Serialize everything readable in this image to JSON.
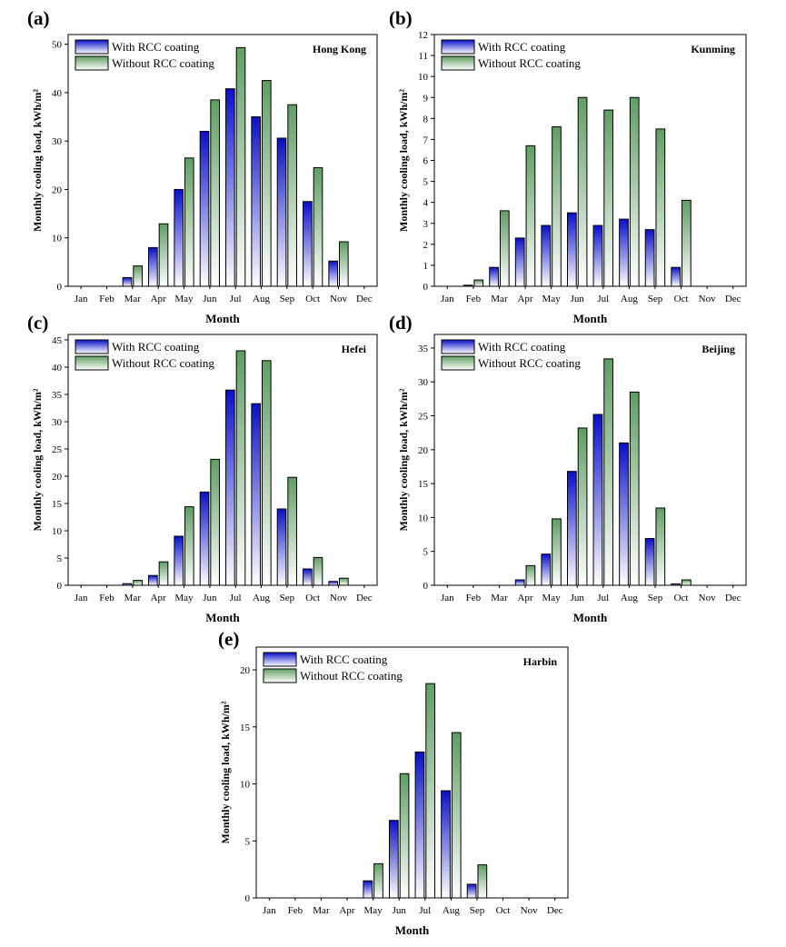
{
  "figure": {
    "months": [
      "Jan",
      "Feb",
      "Mar",
      "Apr",
      "May",
      "Jun",
      "Jul",
      "Aug",
      "Sep",
      "Oct",
      "Nov",
      "Dec"
    ]
  },
  "legend": {
    "with": "With RCC coating",
    "without": "Without RCC coating"
  },
  "colors": {
    "with_dark": "#0a10c8",
    "with_light": "#ffffff",
    "without_dark": "#5f9e63",
    "without_light": "#ffffff",
    "axis": "#000000"
  },
  "chart_data": [
    {
      "panel": "(a)",
      "city": "Hong Kong",
      "type": "bar",
      "xlabel": "Month",
      "ylabel": "Monthly cooling load, kWh/m²",
      "ylim": [
        0,
        52
      ],
      "yticks": [
        0,
        10,
        20,
        30,
        40,
        50
      ],
      "categories": [
        "Jan",
        "Feb",
        "Mar",
        "Apr",
        "May",
        "Jun",
        "Jul",
        "Aug",
        "Sep",
        "Oct",
        "Nov",
        "Dec"
      ],
      "series": [
        {
          "name": "With RCC coating",
          "values": [
            0,
            0,
            1.8,
            8,
            20,
            32,
            40.8,
            35,
            30.6,
            17.5,
            5.2,
            0
          ]
        },
        {
          "name": "Without RCC coating",
          "values": [
            0,
            0,
            4.2,
            12.9,
            26.5,
            38.5,
            49.3,
            42.5,
            37.5,
            24.5,
            9.2,
            0
          ]
        }
      ],
      "grid": false,
      "legend_position": "top-left"
    },
    {
      "panel": "(b)",
      "city": "Kunming",
      "type": "bar",
      "xlabel": "Month",
      "ylabel": "Monthly cooling load, kWh/m²",
      "ylim": [
        0,
        12
      ],
      "yticks": [
        0,
        1,
        2,
        3,
        4,
        5,
        6,
        7,
        8,
        9,
        10,
        11,
        12
      ],
      "categories": [
        "Jan",
        "Feb",
        "Mar",
        "Apr",
        "May",
        "Jun",
        "Jul",
        "Aug",
        "Sep",
        "Oct",
        "Nov",
        "Dec"
      ],
      "series": [
        {
          "name": "With RCC coating",
          "values": [
            0,
            0.05,
            0.9,
            2.3,
            2.9,
            3.5,
            2.9,
            3.2,
            2.7,
            0.9,
            0,
            0
          ]
        },
        {
          "name": "Without RCC coating",
          "values": [
            0,
            0.3,
            3.6,
            6.7,
            7.6,
            9.0,
            8.4,
            9.0,
            7.5,
            4.1,
            0,
            0
          ]
        }
      ],
      "grid": false,
      "legend_position": "top-left"
    },
    {
      "panel": "(c)",
      "city": "Hefei",
      "type": "bar",
      "xlabel": "Month",
      "ylabel": "Monthly cooling load, kWh/m²",
      "ylim": [
        0,
        46
      ],
      "yticks": [
        0,
        5,
        10,
        15,
        20,
        25,
        30,
        35,
        40,
        45
      ],
      "categories": [
        "Jan",
        "Feb",
        "Mar",
        "Apr",
        "May",
        "Jun",
        "Jul",
        "Aug",
        "Sep",
        "Oct",
        "Nov",
        "Dec"
      ],
      "series": [
        {
          "name": "With RCC coating",
          "values": [
            0,
            0,
            0.3,
            1.8,
            9.0,
            17.1,
            35.8,
            33.3,
            14.0,
            3.0,
            0.7,
            0
          ]
        },
        {
          "name": "Without RCC coating",
          "values": [
            0,
            0,
            0.9,
            4.3,
            14.4,
            23.1,
            43.0,
            41.2,
            19.8,
            5.1,
            1.3,
            0
          ]
        }
      ],
      "grid": false,
      "legend_position": "top-left"
    },
    {
      "panel": "(d)",
      "city": "Beijing",
      "type": "bar",
      "xlabel": "Month",
      "ylabel": "Monthly cooling load, kWh/m²",
      "ylim": [
        0,
        37
      ],
      "yticks": [
        0,
        5,
        10,
        15,
        20,
        25,
        30,
        35
      ],
      "categories": [
        "Jan",
        "Feb",
        "Mar",
        "Apr",
        "May",
        "Jun",
        "Jul",
        "Aug",
        "Sep",
        "Oct",
        "Nov",
        "Dec"
      ],
      "series": [
        {
          "name": "With RCC coating",
          "values": [
            0,
            0,
            0,
            0.8,
            4.6,
            16.8,
            25.2,
            21.0,
            6.9,
            0.2,
            0,
            0
          ]
        },
        {
          "name": "Without RCC coating",
          "values": [
            0,
            0,
            0,
            2.9,
            9.8,
            23.2,
            33.4,
            28.5,
            11.4,
            0.8,
            0,
            0
          ]
        }
      ],
      "grid": false,
      "legend_position": "top-left"
    },
    {
      "panel": "(e)",
      "city": "Harbin",
      "type": "bar",
      "xlabel": "Month",
      "ylabel": "Monthly cooling load, kWh/m²",
      "ylim": [
        0,
        22
      ],
      "yticks": [
        0,
        5,
        10,
        15,
        20
      ],
      "categories": [
        "Jan",
        "Feb",
        "Mar",
        "Apr",
        "May",
        "Jun",
        "Jul",
        "Aug",
        "Sep",
        "Oct",
        "Nov",
        "Dec"
      ],
      "series": [
        {
          "name": "With RCC coating",
          "values": [
            0,
            0,
            0,
            0,
            1.5,
            6.8,
            12.8,
            9.4,
            1.2,
            0,
            0,
            0
          ]
        },
        {
          "name": "Without RCC coating",
          "values": [
            0,
            0,
            0,
            0,
            3.0,
            10.9,
            18.8,
            14.5,
            2.9,
            0,
            0,
            0
          ]
        }
      ],
      "grid": false,
      "legend_position": "top-left"
    }
  ]
}
